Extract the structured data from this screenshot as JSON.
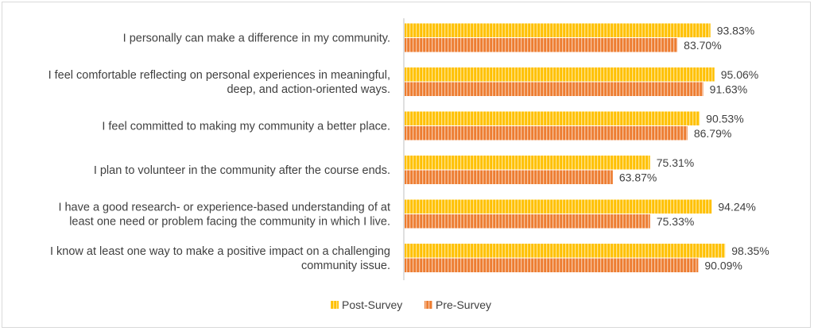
{
  "chart_data": {
    "type": "bar",
    "orientation": "horizontal",
    "categories": [
      [
        "I personally can make a difference in my community."
      ],
      [
        "I feel comfortable reflecting on personal experiences in meaningful,",
        "deep, and action-oriented ways."
      ],
      [
        "I feel committed to making my community a better place."
      ],
      [
        "I plan to volunteer in the community after the course ends."
      ],
      [
        "I have a good research- or experience-based understanding of at",
        "least one need or problem facing the community in which I live."
      ],
      [
        "I know at least one way to make a positive impact on a challenging",
        "community issue."
      ]
    ],
    "series": [
      {
        "name": "Post-Survey",
        "color": "#FFC000",
        "stripe": "#FFE48A",
        "values": [
          93.83,
          95.06,
          90.53,
          75.31,
          94.24,
          98.35
        ],
        "labels": [
          "93.83%",
          "95.06%",
          "90.53%",
          "75.31%",
          "94.24%",
          "98.35%"
        ]
      },
      {
        "name": "Pre-Survey",
        "color": "#ED7D31",
        "stripe": "#F7C2A0",
        "values": [
          83.7,
          91.63,
          86.79,
          63.87,
          75.33,
          90.09
        ],
        "labels": [
          "83.70%",
          "91.63%",
          "86.79%",
          "63.87%",
          "75.33%",
          "90.09%"
        ]
      }
    ],
    "xlim": [
      0,
      100
    ],
    "grid": false,
    "legend_position": "bottom"
  }
}
